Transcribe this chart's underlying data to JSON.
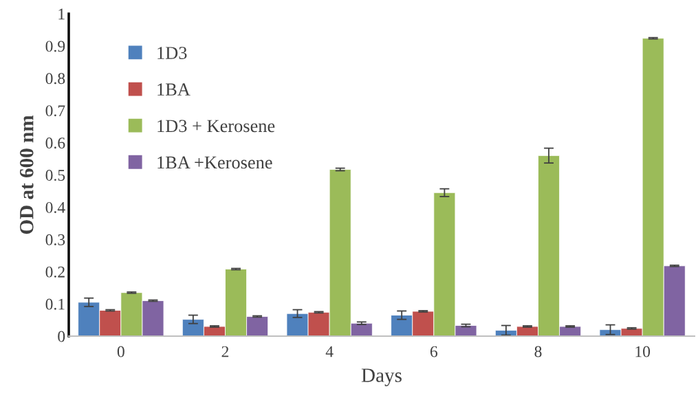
{
  "chart_data": {
    "type": "bar",
    "xlabel": "Days",
    "ylabel": "OD at 600 nm",
    "categories": [
      "0",
      "2",
      "4",
      "6",
      "8",
      "10"
    ],
    "ylim": [
      0,
      1
    ],
    "yticks": [
      0,
      0.1,
      0.2,
      0.3,
      0.4,
      0.5,
      0.6,
      0.7,
      0.8,
      0.9,
      1
    ],
    "grid": false,
    "legend": "top left",
    "series": [
      {
        "name": "1D3",
        "color": "#4f81bd",
        "values": [
          0.105,
          0.052,
          0.07,
          0.065,
          0.018,
          0.02
        ],
        "errors": [
          0.013,
          0.013,
          0.012,
          0.013,
          0.015,
          0.015
        ]
      },
      {
        "name": "1BA",
        "color": "#c0504d",
        "values": [
          0.08,
          0.03,
          0.074,
          0.077,
          0.03,
          0.024
        ],
        "errors": [
          0.002,
          0.002,
          0.002,
          0.002,
          0.002,
          0.002
        ]
      },
      {
        "name": "1D3 + Kerosene",
        "color": "#9bbb59",
        "values": [
          0.135,
          0.208,
          0.517,
          0.445,
          0.56,
          0.924
        ],
        "errors": [
          0.002,
          0.002,
          0.004,
          0.012,
          0.023,
          0.002
        ]
      },
      {
        "name": "1BA +Kerosene",
        "color": "#8064a2",
        "values": [
          0.11,
          0.061,
          0.04,
          0.033,
          0.03,
          0.218
        ],
        "errors": [
          0.002,
          0.002,
          0.004,
          0.004,
          0.002,
          0.002
        ]
      }
    ]
  }
}
